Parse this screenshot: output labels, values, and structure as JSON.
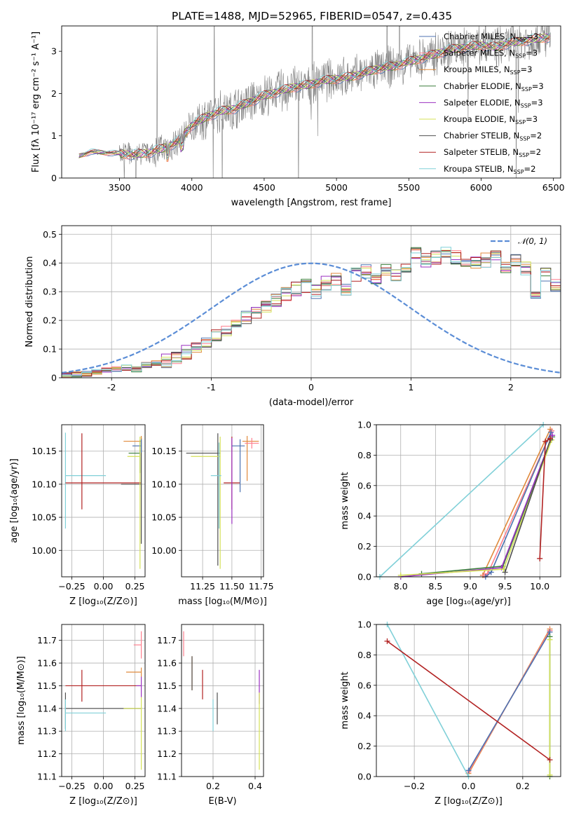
{
  "colors": {
    "chabrier_miles": "#4c72b0",
    "salpeter_miles": "#ff7f8e",
    "kroupa_miles": "#e08a3c",
    "chabrier_elodie": "#3a7d3a",
    "salpeter_elodie": "#9b30c0",
    "kroupa_elodie": "#d4e157",
    "chabrier_stelib": "#505050",
    "salpeter_stelib": "#b22222",
    "kroupa_stelib": "#80d0d8",
    "data": "#808080",
    "gaussian": "#5b8dd6"
  },
  "chart_data": [
    {
      "id": "spectrum",
      "type": "line",
      "title": "PLATE=1488, MJD=52965, FIBERID=0547, z=0.435",
      "xlabel": "wavelength [Angstrom, rest frame]",
      "ylabel": "Flux [fλ 10⁻¹⁷ erg cm⁻² s⁻¹ A⁻¹]",
      "xlim": [
        3100,
        6550
      ],
      "ylim": [
        0,
        3.6
      ],
      "xticks": [
        3500,
        4000,
        4500,
        5000,
        5500,
        6000,
        6500
      ],
      "yticks": [
        0,
        1,
        2,
        3
      ],
      "grid": false,
      "legend_position": "top-right",
      "continuum_model": {
        "x": [
          3220,
          3300,
          3400,
          3500,
          3600,
          3700,
          3800,
          3900,
          4000,
          4100,
          4200,
          4300,
          4400,
          4500,
          4600,
          4700,
          4800,
          4900,
          5000,
          5100,
          5200,
          5300,
          5400,
          5500,
          5600,
          5700,
          5800,
          5900,
          6000,
          6100,
          6200,
          6300,
          6400,
          6480
        ],
        "y": [
          0.52,
          0.62,
          0.6,
          0.58,
          0.55,
          0.6,
          0.7,
          0.85,
          1.25,
          1.45,
          1.58,
          1.65,
          1.8,
          1.95,
          2.05,
          2.15,
          2.2,
          2.3,
          2.35,
          2.4,
          2.5,
          2.6,
          2.65,
          2.75,
          2.85,
          2.95,
          3.05,
          3.1,
          3.15,
          3.1,
          3.2,
          3.25,
          3.3,
          3.35
        ]
      },
      "series": [
        {
          "name": "Chabrier MILES, N$_{SSP}$=3",
          "color_key": "chabrier_miles",
          "label": "Chabrier MILES, N",
          "sub": "SSP",
          "suffix": "=3"
        },
        {
          "name": "Salpeter MILES, N$_{SSP}$=3",
          "color_key": "salpeter_miles",
          "label": "Salpeter MILES, N",
          "sub": "SSP",
          "suffix": "=3"
        },
        {
          "name": "Kroupa MILES, N$_{SSP}$=3",
          "color_key": "kroupa_miles",
          "label": "Kroupa MILES, N",
          "sub": "SSP",
          "suffix": "=3"
        },
        {
          "name": "Chabrier ELODIE, N$_{SSP}$=3",
          "color_key": "chabrier_elodie",
          "label": "Chabrier ELODIE, N",
          "sub": "SSP",
          "suffix": "=3"
        },
        {
          "name": "Salpeter ELODIE, N$_{SSP}$=3",
          "color_key": "salpeter_elodie",
          "label": "Salpeter ELODIE, N",
          "sub": "SSP",
          "suffix": "=3"
        },
        {
          "name": "Kroupa ELODIE, N$_{SSP}$=3",
          "color_key": "kroupa_elodie",
          "label": "Kroupa ELODIE, N",
          "sub": "SSP",
          "suffix": "=3"
        },
        {
          "name": "Chabrier STELIB, N$_{SSP}$=2",
          "color_key": "chabrier_stelib",
          "label": "Chabrier STELIB, N",
          "sub": "SSP",
          "suffix": "=2"
        },
        {
          "name": "Salpeter STELIB, N$_{SSP}$=2",
          "color_key": "salpeter_stelib",
          "label": "Salpeter STELIB, N",
          "sub": "SSP",
          "suffix": "=2"
        },
        {
          "name": "Kroupa STELIB, N$_{SSP}$=2",
          "color_key": "kroupa_stelib",
          "label": "Kroupa STELIB, N",
          "sub": "SSP",
          "suffix": "=2"
        }
      ]
    },
    {
      "id": "residuals",
      "type": "step",
      "xlabel": "(data-model)/error",
      "ylabel": "Normed distribution",
      "xlim": [
        -2.5,
        2.5
      ],
      "ylim": [
        0,
        0.53
      ],
      "xticks": [
        -2,
        -1,
        0,
        1,
        2
      ],
      "yticks": [
        0.0,
        0.1,
        0.2,
        0.3,
        0.4,
        0.5
      ],
      "grid": true,
      "legend_position": "top-right",
      "gaussian_label": "𝒩(0, 1)",
      "bin_width": 0.1,
      "bin_start": -2.5,
      "base_values": [
        0.01,
        0.012,
        0.015,
        0.02,
        0.025,
        0.03,
        0.035,
        0.03,
        0.045,
        0.05,
        0.06,
        0.07,
        0.09,
        0.1,
        0.13,
        0.15,
        0.17,
        0.19,
        0.21,
        0.23,
        0.25,
        0.27,
        0.29,
        0.31,
        0.32,
        0.3,
        0.33,
        0.34,
        0.31,
        0.36,
        0.37,
        0.35,
        0.38,
        0.36,
        0.39,
        0.43,
        0.41,
        0.42,
        0.44,
        0.42,
        0.41,
        0.4,
        0.41,
        0.43,
        0.39,
        0.41,
        0.38,
        0.3,
        0.36,
        0.32,
        0.27,
        0.25,
        0.24,
        0.21,
        0.2,
        0.18,
        0.16,
        0.15,
        0.12,
        0.13,
        0.1,
        0.08,
        0.09,
        0.06,
        0.05,
        0.06,
        0.04,
        0.045,
        0.035,
        0.03
      ]
    },
    {
      "id": "age_vs_z",
      "type": "errorbar",
      "xlabel": "Z [log₁₀(Z/Z⊙)]",
      "ylabel": "age  [log₁₀(age/yr)]",
      "xlim": [
        -0.33,
        0.33
      ],
      "ylim": [
        9.96,
        10.19
      ],
      "xticks": [
        -0.25,
        0.0,
        0.25
      ],
      "xticklabels": [
        "−0.25",
        "0.00",
        "0.25"
      ],
      "yticks": [
        10.0,
        10.05,
        10.1,
        10.15
      ],
      "yticklabels": [
        "10.00",
        "10.05",
        "10.10",
        "10.15"
      ],
      "grid": true,
      "points": [
        {
          "x": -0.3,
          "y": 10.113,
          "xerr": [
            0.0,
            0.32
          ],
          "yerr": [
            0.08,
            0.065
          ],
          "color_key": "kroupa_stelib"
        },
        {
          "x": -0.17,
          "y": 10.102,
          "xerr": [
            0.13,
            0.47
          ],
          "yerr": [
            0.04,
            0.075
          ],
          "color_key": "salpeter_stelib"
        },
        {
          "x": 0.3,
          "y": 10.1,
          "xerr": [
            0.16,
            0.0
          ],
          "yerr": [
            0.09,
            0.07
          ],
          "color_key": "chabrier_stelib"
        },
        {
          "x": 0.3,
          "y": 10.165,
          "xerr": [
            0.14,
            0.0
          ],
          "yerr": [
            0.015,
            0.008
          ],
          "color_key": "kroupa_miles"
        },
        {
          "x": 0.3,
          "y": 10.158,
          "xerr": [
            0.07,
            0.0
          ],
          "yerr": [
            0.01,
            0.01
          ],
          "color_key": "chabrier_miles"
        },
        {
          "x": 0.29,
          "y": 10.147,
          "xerr": [
            0.09,
            0.0
          ],
          "yerr": [
            0.03,
            0.02
          ],
          "color_key": "chabrier_elodie"
        },
        {
          "x": 0.29,
          "y": 10.142,
          "xerr": [
            0.1,
            0.0
          ],
          "yerr": [
            0.17,
            0.03
          ],
          "color_key": "kroupa_elodie"
        }
      ]
    },
    {
      "id": "age_vs_mass",
      "type": "errorbar",
      "xlabel": "mass [log₁₀(M/M⊙)]",
      "ylabel": "",
      "xlim": [
        11.07,
        11.77
      ],
      "ylim": [
        9.96,
        10.19
      ],
      "xticks": [
        11.25,
        11.5,
        11.75
      ],
      "xticklabels": [
        "11.25",
        "11.50",
        "11.75"
      ],
      "yticks": [
        10.0,
        10.05,
        10.1,
        10.15
      ],
      "yticklabels": [
        "10.00",
        "10.05",
        "10.10",
        "10.15"
      ],
      "grid": true,
      "points": [
        {
          "x": 11.38,
          "y": 10.147,
          "xerr": [
            0.27,
            0.02
          ],
          "yerr": [
            0.17,
            0.03
          ],
          "color_key": "chabrier_stelib"
        },
        {
          "x": 11.4,
          "y": 10.142,
          "xerr": [
            0.25,
            0.0
          ],
          "yerr": [
            0.17,
            0.03
          ],
          "color_key": "kroupa_elodie"
        },
        {
          "x": 11.39,
          "y": 10.113,
          "xerr": [
            0.07,
            0.02
          ],
          "yerr": [
            0.08,
            0.05
          ],
          "color_key": "kroupa_stelib"
        },
        {
          "x": 11.5,
          "y": 10.102,
          "xerr": [
            0.07,
            0.07
          ],
          "yerr": [
            0.04,
            0.07
          ],
          "color_key": "salpeter_stelib"
        },
        {
          "x": 11.5,
          "y": 10.12,
          "xerr": [
            0.0,
            0.0
          ],
          "yerr": [
            0.08,
            0.05
          ],
          "color_key": "salpeter_elodie"
        },
        {
          "x": 11.57,
          "y": 10.158,
          "xerr": [
            0.07,
            0.04
          ],
          "yerr": [
            0.07,
            0.01
          ],
          "color_key": "chabrier_miles"
        },
        {
          "x": 11.63,
          "y": 10.165,
          "xerr": [
            0.04,
            0.1
          ],
          "yerr": [
            0.06,
            0.008
          ],
          "color_key": "kroupa_miles"
        },
        {
          "x": 11.67,
          "y": 10.162,
          "xerr": [
            0.06,
            0.06
          ],
          "yerr": [
            0.008,
            0.008
          ],
          "color_key": "salpeter_miles"
        }
      ]
    },
    {
      "id": "weight_vs_age",
      "type": "line",
      "xlabel": "age  [log₁₀(age/yr)]",
      "ylabel": "mass weight",
      "xlim": [
        7.65,
        10.3
      ],
      "ylim": [
        0,
        1.0
      ],
      "xticks": [
        8.0,
        8.5,
        9.0,
        9.5,
        10.0
      ],
      "xticklabels": [
        "8.0",
        "8.5",
        "9.0",
        "9.5",
        "10.0"
      ],
      "yticks": [
        0.0,
        0.2,
        0.4,
        0.6,
        0.8,
        1.0
      ],
      "yticklabels": [
        "0.0",
        "0.2",
        "0.4",
        "0.6",
        "0.8",
        "1.0"
      ],
      "grid": true,
      "series": [
        {
          "color_key": "kroupa_miles",
          "x": [
            9.18,
            10.15
          ],
          "y": [
            0.01,
            0.97
          ]
        },
        {
          "color_key": "salpeter_miles",
          "x": [
            9.2,
            9.25,
            10.17
          ],
          "y": [
            0.01,
            0.02,
            0.96
          ]
        },
        {
          "color_key": "chabrier_miles",
          "x": [
            9.22,
            9.3,
            10.16
          ],
          "y": [
            0.0,
            0.03,
            0.95
          ]
        },
        {
          "color_key": "chabrier_elodie",
          "x": [
            8.3,
            9.47,
            10.18
          ],
          "y": [
            0.02,
            0.07,
            0.92
          ]
        },
        {
          "color_key": "salpeter_elodie",
          "x": [
            8.0,
            9.45,
            10.18
          ],
          "y": [
            0.0,
            0.06,
            0.93
          ]
        },
        {
          "color_key": "kroupa_elodie",
          "x": [
            8.0,
            9.48,
            10.17
          ],
          "y": [
            0.01,
            0.05,
            0.9
          ]
        },
        {
          "color_key": "chabrier_stelib",
          "x": [
            9.5,
            10.15
          ],
          "y": [
            0.03,
            0.9
          ]
        },
        {
          "color_key": "salpeter_stelib",
          "x": [
            10.0,
            10.08,
            10.15
          ],
          "y": [
            0.12,
            0.89,
            0.91
          ]
        },
        {
          "color_key": "kroupa_stelib",
          "x": [
            7.7,
            10.05
          ],
          "y": [
            0.0,
            1.0
          ]
        }
      ]
    },
    {
      "id": "mass_vs_z",
      "type": "errorbar",
      "xlabel": "Z [log₁₀(Z/Z⊙)]",
      "ylabel": "mass [log₁₀(M/M⊙)]",
      "xlim": [
        -0.33,
        0.33
      ],
      "ylim": [
        11.1,
        11.77
      ],
      "xticks": [
        -0.25,
        0.0,
        0.25
      ],
      "xticklabels": [
        "−0.25",
        "0.00",
        "0.25"
      ],
      "yticks": [
        11.1,
        11.2,
        11.3,
        11.4,
        11.5,
        11.6,
        11.7
      ],
      "yticklabels": [
        "11.1",
        "11.2",
        "11.3",
        "11.4",
        "11.5",
        "11.6",
        "11.7"
      ],
      "grid": true,
      "points": [
        {
          "x": -0.3,
          "y": 11.4,
          "xerr": [
            0.0,
            0.6
          ],
          "yerr": [
            0.09,
            0.07
          ],
          "color_key": "chabrier_stelib"
        },
        {
          "x": -0.3,
          "y": 11.38,
          "xerr": [
            0.0,
            0.32
          ],
          "yerr": [
            0.08,
            0.06
          ],
          "color_key": "kroupa_stelib"
        },
        {
          "x": -0.17,
          "y": 11.5,
          "xerr": [
            0.13,
            0.47
          ],
          "yerr": [
            0.07,
            0.07
          ],
          "color_key": "salpeter_stelib"
        },
        {
          "x": 0.3,
          "y": 11.56,
          "xerr": [
            0.12,
            0.0
          ],
          "yerr": [
            0.02,
            0.02
          ],
          "color_key": "kroupa_miles"
        },
        {
          "x": 0.3,
          "y": 11.68,
          "xerr": [
            0.06,
            0.0
          ],
          "yerr": [
            0.06,
            0.06
          ],
          "color_key": "salpeter_miles"
        },
        {
          "x": 0.3,
          "y": 11.4,
          "xerr": [
            0.14,
            0.0
          ],
          "yerr": [
            0.27,
            0.05
          ],
          "color_key": "kroupa_elodie"
        },
        {
          "x": 0.3,
          "y": 11.5,
          "xerr": [
            0.04,
            0.0
          ],
          "yerr": [
            0.05,
            0.04
          ],
          "color_key": "salpeter_elodie"
        }
      ]
    },
    {
      "id": "mass_vs_ebv",
      "type": "errorbar",
      "xlabel": "E(B-V)",
      "ylabel": "",
      "xlim": [
        0.05,
        0.44
      ],
      "ylim": [
        11.1,
        11.77
      ],
      "xticks": [
        0.2,
        0.4
      ],
      "xticklabels": [
        "0.2",
        "0.4"
      ],
      "yticks": [
        11.1,
        11.2,
        11.3,
        11.4,
        11.5,
        11.6,
        11.7
      ],
      "yticklabels": [
        "11.1",
        "11.2",
        "11.3",
        "11.4",
        "11.5",
        "11.6",
        "11.7"
      ],
      "grid": true,
      "points": [
        {
          "x": 0.06,
          "y": 11.63,
          "xerr": [
            0.0,
            0.0
          ],
          "yerr": [
            0.0,
            0.11
          ],
          "color_key": "salpeter_miles"
        },
        {
          "x": 0.1,
          "y": 11.56,
          "xerr": [
            0.0,
            0.0
          ],
          "yerr": [
            0.08,
            0.07
          ],
          "color_key": "kroupa_miles"
        },
        {
          "x": 0.1,
          "y": 11.55,
          "xerr": [
            0.0,
            0.0
          ],
          "yerr": [
            0.07,
            0.08
          ],
          "color_key": "chabrier_stelib"
        },
        {
          "x": 0.15,
          "y": 11.5,
          "xerr": [
            0.0,
            0.0
          ],
          "yerr": [
            0.06,
            0.07
          ],
          "color_key": "salpeter_stelib"
        },
        {
          "x": 0.2,
          "y": 11.37,
          "xerr": [
            0.0,
            0.0
          ],
          "yerr": [
            0.07,
            0.07
          ],
          "color_key": "kroupa_stelib"
        },
        {
          "x": 0.22,
          "y": 11.4,
          "xerr": [
            0.0,
            0.0
          ],
          "yerr": [
            0.07,
            0.07
          ],
          "color_key": "chabrier_stelib"
        },
        {
          "x": 0.42,
          "y": 11.48,
          "xerr": [
            0.0,
            0.0
          ],
          "yerr": [
            0.06,
            0.09
          ],
          "color_key": "salpeter_elodie"
        },
        {
          "x": 0.42,
          "y": 11.4,
          "xerr": [
            0.0,
            0.0
          ],
          "yerr": [
            0.27,
            0.07
          ],
          "color_key": "kroupa_elodie"
        }
      ]
    },
    {
      "id": "weight_vs_z",
      "type": "line",
      "xlabel": "Z [log₁₀(Z/Z⊙)]",
      "ylabel": "mass weight",
      "xlim": [
        -0.34,
        0.34
      ],
      "ylim": [
        0,
        1.0
      ],
      "xticks": [
        -0.2,
        0.0,
        0.2
      ],
      "xticklabels": [
        "−0.2",
        "0.0",
        "0.2"
      ],
      "yticks": [
        0.0,
        0.2,
        0.4,
        0.6,
        0.8,
        1.0
      ],
      "yticklabels": [
        "0.0",
        "0.2",
        "0.4",
        "0.6",
        "0.8",
        "1.0"
      ],
      "grid": true,
      "series": [
        {
          "color_key": "kroupa_miles",
          "x": [
            0.0,
            0.3
          ],
          "y": [
            0.02,
            0.97
          ]
        },
        {
          "color_key": "salpeter_miles",
          "x": [
            0.0,
            0.3
          ],
          "y": [
            0.03,
            0.96
          ]
        },
        {
          "color_key": "chabrier_miles",
          "x": [
            0.0,
            0.3
          ],
          "y": [
            0.04,
            0.95
          ]
        },
        {
          "color_key": "kroupa_stelib",
          "x": [
            -0.3,
            0.0
          ],
          "y": [
            1.0,
            0.0
          ]
        },
        {
          "color_key": "chabrier_elodie",
          "x": [
            0.3,
            0.3
          ],
          "y": [
            0.0,
            0.92
          ]
        },
        {
          "color_key": "kroupa_elodie",
          "x": [
            0.3,
            0.3
          ],
          "y": [
            0.01,
            0.9
          ]
        },
        {
          "color_key": "salpeter_stelib",
          "x": [
            -0.3,
            0.3
          ],
          "y": [
            0.89,
            0.11
          ]
        }
      ]
    }
  ]
}
